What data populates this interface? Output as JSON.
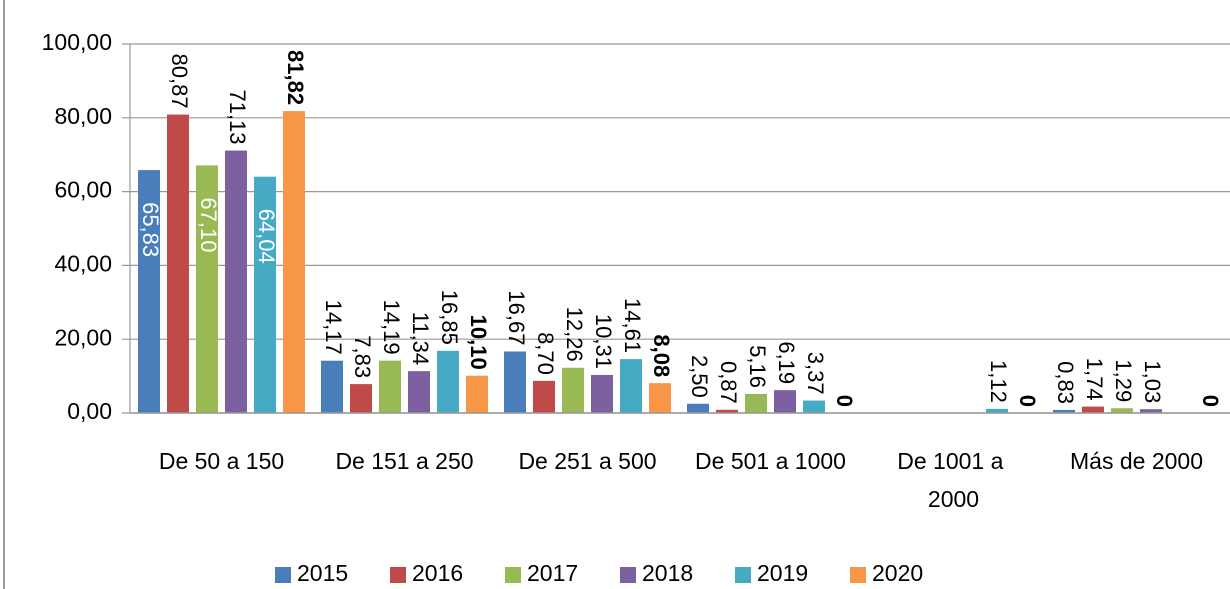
{
  "chart_data": {
    "type": "bar",
    "categories": [
      "De 50 a 150",
      "De 151 a 250",
      "De 251 a 500",
      "De 501 a 1000",
      "De 1001 a 2000",
      "Más de 2000"
    ],
    "series": [
      {
        "name": "2015",
        "color": "#4a7ebb",
        "values": [
          65.83,
          14.17,
          16.67,
          2.5,
          null,
          0.83
        ],
        "value_labels": [
          "65,83",
          "14,17",
          "16,67",
          "2,50",
          null,
          "0,83"
        ]
      },
      {
        "name": "2016",
        "color": "#be4b48",
        "values": [
          80.87,
          7.83,
          8.7,
          0.87,
          null,
          1.74
        ],
        "value_labels": [
          "80,87",
          "7,83",
          "8,70",
          "0,87",
          null,
          "1,74"
        ]
      },
      {
        "name": "2017",
        "color": "#98b954",
        "values": [
          67.1,
          14.19,
          12.26,
          5.16,
          null,
          1.29
        ],
        "value_labels": [
          "67,10",
          "14,19",
          "12,26",
          "5,16",
          null,
          "1,29"
        ]
      },
      {
        "name": "2018",
        "color": "#7d60a0",
        "values": [
          71.13,
          11.34,
          10.31,
          6.19,
          null,
          1.03
        ],
        "value_labels": [
          "71,13",
          "11,34",
          "10,31",
          "6,19",
          null,
          "1,03"
        ]
      },
      {
        "name": "2019",
        "color": "#46aac5",
        "values": [
          64.04,
          16.85,
          14.61,
          3.37,
          1.12,
          null
        ],
        "value_labels": [
          "64,04",
          "16,85",
          "14,61",
          "3,37",
          "1,12",
          null
        ]
      },
      {
        "name": "2020",
        "color": "#f79646",
        "values": [
          81.82,
          10.1,
          8.08,
          0,
          0,
          0
        ],
        "value_labels": [
          "81,82",
          "10,10",
          "8,08",
          "0",
          "0",
          "0"
        ]
      }
    ],
    "ylim": [
      0,
      100
    ],
    "yticks": [
      {
        "value": 0,
        "label": "0,00"
      },
      {
        "value": 20,
        "label": "20,00"
      },
      {
        "value": 40,
        "label": "40,00"
      },
      {
        "value": 60,
        "label": "60,00"
      },
      {
        "value": 80,
        "label": "80,00"
      },
      {
        "value": 100,
        "label": "100,00"
      }
    ],
    "grid": true,
    "legend": "bottom"
  }
}
